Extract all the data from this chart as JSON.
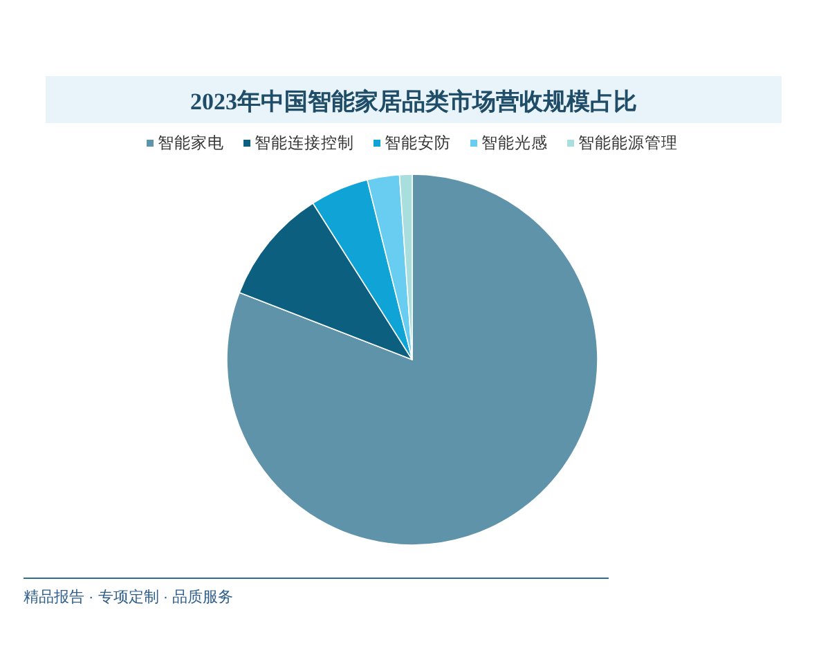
{
  "chart_data": {
    "type": "pie",
    "title": "2023年中国智能家居品类市场营收规模占比",
    "categories": [
      "智能家电",
      "智能连接控制",
      "智能安防",
      "智能光感",
      "智能能源管理"
    ],
    "values": [
      80.9,
      10.1,
      5.1,
      2.8,
      1.1
    ],
    "colors": [
      "#5e93a9",
      "#0d5f80",
      "#10a4d6",
      "#68cdf0",
      "#a9dede"
    ],
    "legend": "top",
    "annotations": [
      "精品报告 · 专项定制 · 品质服务"
    ]
  }
}
